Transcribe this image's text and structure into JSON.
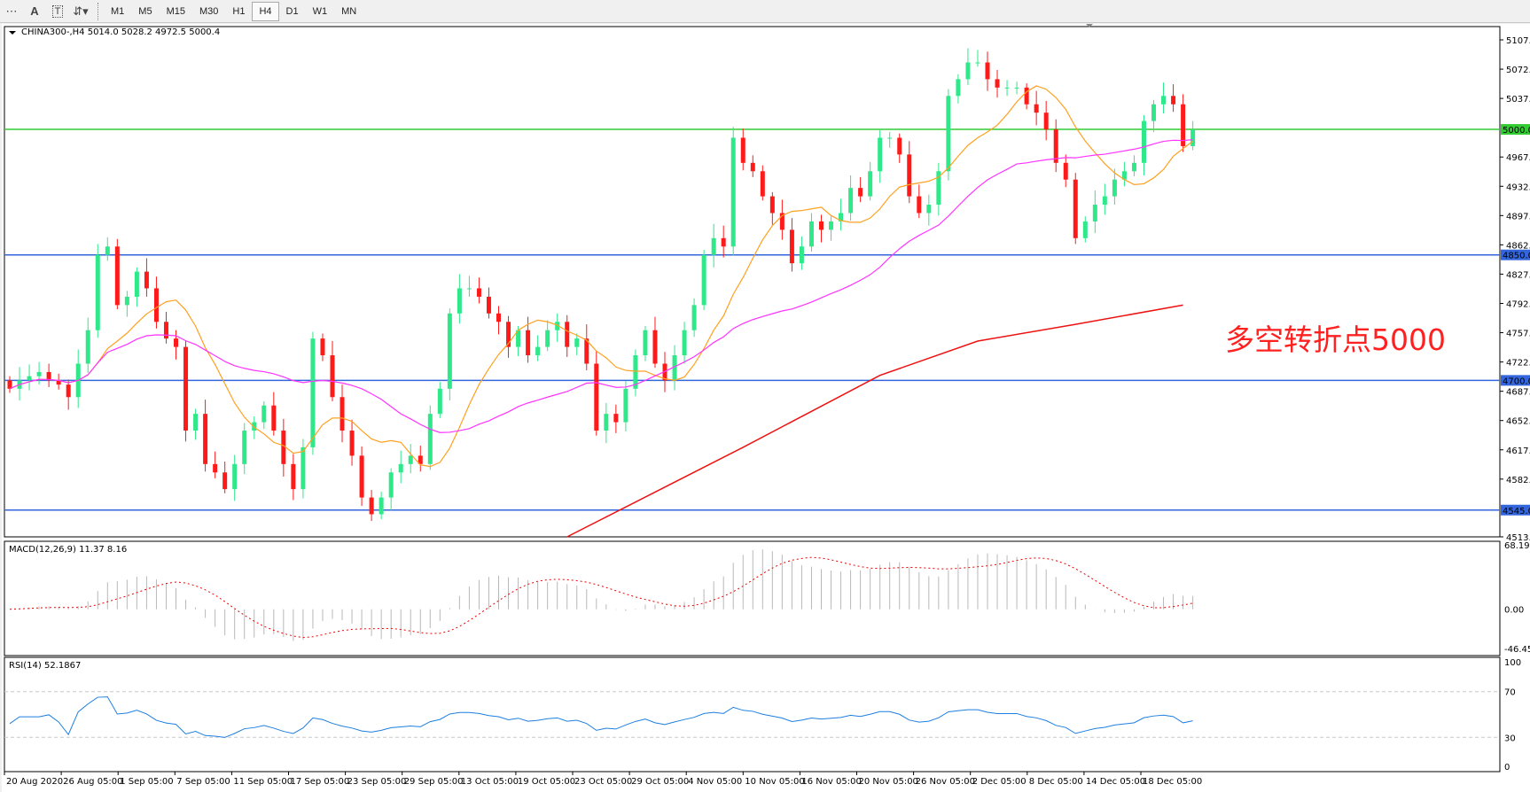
{
  "toolbar": {
    "icons": [
      "grid-icon",
      "text-icon",
      "text-label-icon",
      "arrows-icon"
    ],
    "timeframes": [
      "M1",
      "M5",
      "M15",
      "M30",
      "H1",
      "H4",
      "D1",
      "W1",
      "MN"
    ],
    "active": "H4"
  },
  "chart": {
    "title": "CHINA300-,H4  5014.0 5028.2 4972.5 5000.4",
    "annotation": "多空转折点5000"
  },
  "colors": {
    "bull": "#2ee88a",
    "bear": "#ff1a1a",
    "ma_fast": "#ffa020",
    "ma_mid": "#ff33ff",
    "ma_slow": "#ee1111",
    "level_main": "#33cc33",
    "level": "#3366dd",
    "rsi": "#1e7fe0"
  },
  "chart_data": {
    "type": "candlestick",
    "price_ticks": [
      5107.0,
      5072.0,
      5037.0,
      4967.0,
      4932.0,
      4897.0,
      4862.0,
      4827.0,
      4792.0,
      4757.0,
      4722.0,
      4687.0,
      4652.0,
      4617.0,
      4582.0,
      4513.0
    ],
    "ylim": [
      4513,
      5107
    ],
    "levels": [
      {
        "value": 5000.0,
        "label": "5000.0",
        "main": true
      },
      {
        "value": 4850.0,
        "label": "4850.0"
      },
      {
        "value": 4700.0,
        "label": "4700.0"
      },
      {
        "value": 4545.0,
        "label": "4545.0"
      }
    ],
    "x_labels": [
      "20 Aug 2020",
      "26 Aug 05:00",
      "1 Sep 05:00",
      "7 Sep 05:00",
      "11 Sep 05:00",
      "17 Sep 05:00",
      "23 Sep 05:00",
      "29 Sep 05:00",
      "13 Oct 05:00",
      "19 Oct 05:00",
      "23 Oct 05:00",
      "29 Oct 05:00",
      "4 Nov 05:00",
      "10 Nov 05:00",
      "16 Nov 05:00",
      "20 Nov 05:00",
      "26 Nov 05:00",
      "2 Dec 05:00",
      "8 Dec 05:00",
      "14 Dec 05:00",
      "18 Dec 05:00"
    ],
    "closes": [
      4690,
      4700,
      4705,
      4710,
      4700,
      4695,
      4680,
      4720,
      4760,
      4850,
      4860,
      4790,
      4800,
      4830,
      4810,
      4770,
      4750,
      4740,
      4640,
      4660,
      4600,
      4590,
      4570,
      4600,
      4640,
      4650,
      4670,
      4640,
      4600,
      4570,
      4620,
      4750,
      4730,
      4680,
      4640,
      4610,
      4560,
      4540,
      4560,
      4590,
      4600,
      4610,
      4600,
      4660,
      4690,
      4780,
      4810,
      4810,
      4800,
      4780,
      4770,
      4740,
      4760,
      4730,
      4740,
      4760,
      4770,
      4740,
      4750,
      4720,
      4640,
      4660,
      4650,
      4690,
      4730,
      4760,
      4720,
      4700,
      4730,
      4760,
      4790,
      4850,
      4870,
      4860,
      4990,
      4960,
      4950,
      4920,
      4900,
      4880,
      4840,
      4860,
      4890,
      4880,
      4890,
      4900,
      4930,
      4920,
      4950,
      4990,
      4990,
      4970,
      4920,
      4900,
      4910,
      4950,
      5040,
      5060,
      5080,
      5080,
      5060,
      5050,
      5050,
      5050,
      5030,
      5020,
      5000,
      4960,
      4940,
      4870,
      4890,
      4910,
      4920,
      4940,
      4950,
      4960,
      5010,
      5030,
      5040,
      5030,
      4980,
      5000
    ],
    "ma_slow": [
      {
        "bar": 57,
        "value": 4510
      },
      {
        "bar": 75,
        "value": 4620
      },
      {
        "bar": 89,
        "value": 4706
      },
      {
        "bar": 99,
        "value": 4747
      },
      {
        "bar": 109,
        "value": 4767
      },
      {
        "bar": 120,
        "value": 4790
      }
    ],
    "macd": {
      "label": "MACD(12,26,9) 11.37 8.16",
      "ticks": [
        "68.19",
        "0.00",
        "-46.45"
      ],
      "ylim": [
        -46.45,
        68.19
      ]
    },
    "rsi": {
      "label": "RSI(14) 52.1867",
      "ticks": [
        "100",
        "70",
        "30",
        "0"
      ],
      "levels": [
        70,
        30
      ]
    }
  }
}
